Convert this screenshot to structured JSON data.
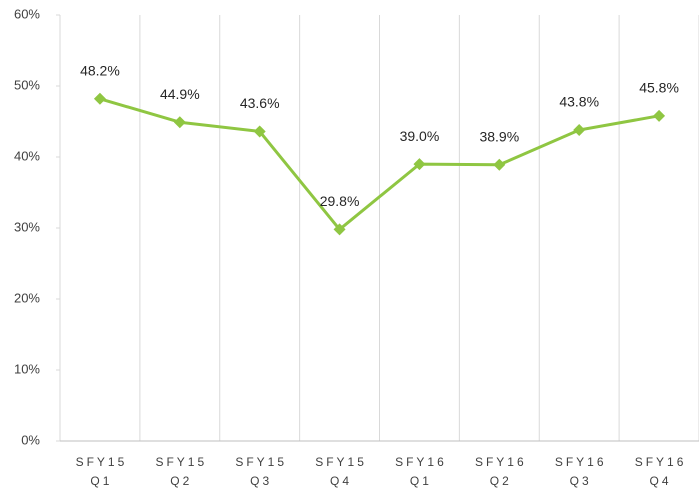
{
  "chart_data": {
    "type": "line",
    "categories": [
      [
        "SFY15",
        "Q1"
      ],
      [
        "SFY15",
        "Q2"
      ],
      [
        "SFY15",
        "Q3"
      ],
      [
        "SFY15",
        "Q4"
      ],
      [
        "SFY16",
        "Q1"
      ],
      [
        "SFY16",
        "Q2"
      ],
      [
        "SFY16",
        "Q3"
      ],
      [
        "SFY16",
        "Q4"
      ]
    ],
    "values": [
      48.2,
      44.9,
      43.6,
      29.8,
      39.0,
      38.9,
      43.8,
      45.8
    ],
    "value_labels": [
      "48.2%",
      "44.9%",
      "43.6%",
      "29.8%",
      "39.0%",
      "38.9%",
      "43.8%",
      "45.8%"
    ],
    "color": "#8fc642",
    "ylim": [
      0,
      60
    ],
    "yticks": [
      {
        "value": 0,
        "label": "0%"
      },
      {
        "value": 10,
        "label": "10%"
      },
      {
        "value": 20,
        "label": "20%"
      },
      {
        "value": 30,
        "label": "30%"
      },
      {
        "value": 40,
        "label": "40%"
      },
      {
        "value": 50,
        "label": "50%"
      },
      {
        "value": 60,
        "label": "60%"
      }
    ],
    "grid": true
  }
}
